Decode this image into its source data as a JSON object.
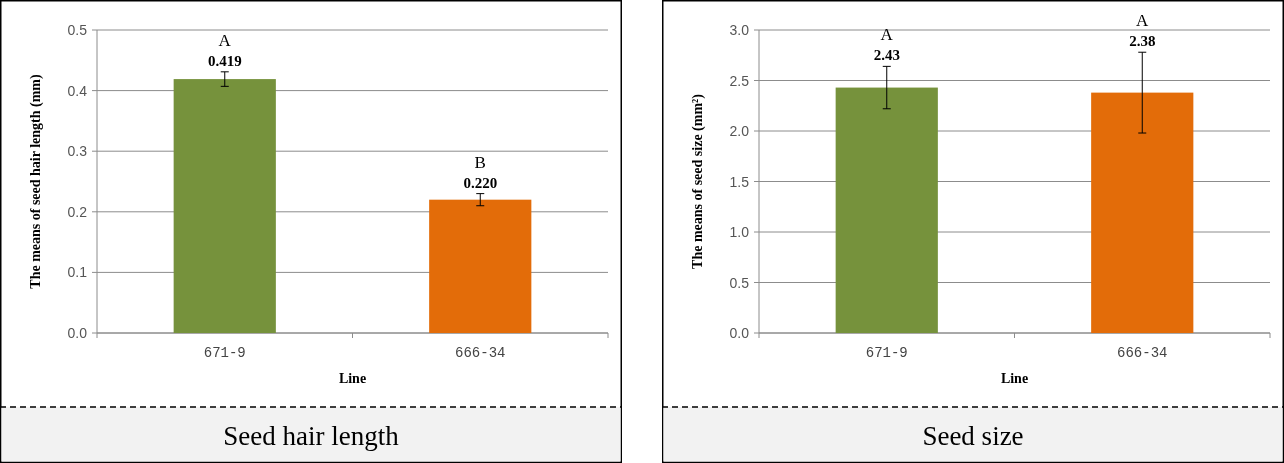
{
  "chart_data": [
    {
      "type": "bar",
      "title": "Seed hair length",
      "xlabel": "Line",
      "ylabel": "The means of seed hair length (mm)",
      "categories": [
        "671-9",
        "666-34"
      ],
      "values": [
        0.419,
        0.22
      ],
      "colors": [
        "#76923c",
        "#e36c09"
      ],
      "errors": [
        0.012,
        0.01
      ],
      "value_labels": [
        "0.419",
        "0.220"
      ],
      "ylim": [
        0,
        0.5
      ],
      "yticks": [
        {
          "value": 0,
          "label": "0.0"
        },
        0.1,
        0.2,
        0.3,
        0.4,
        0.5
      ],
      "grid": "y",
      "annotations": [
        "A",
        "B"
      ]
    },
    {
      "type": "bar",
      "title": "Seed size",
      "xlabel": "Line",
      "ylabel": "The means of seed size (mm²)",
      "categories": [
        "671-9",
        "666-34"
      ],
      "values": [
        2.43,
        2.38
      ],
      "colors": [
        "#76923c",
        "#e36c09"
      ],
      "errors": [
        0.21,
        0.4
      ],
      "value_labels": [
        "2.43",
        "2.38"
      ],
      "ylim": [
        0,
        3
      ],
      "yticks": [
        {
          "value": 0,
          "label": "0.0"
        },
        0.5,
        {
          "value": 1,
          "label": "1.0"
        },
        1.5,
        {
          "value": 2,
          "label": "2.0"
        },
        2.5,
        {
          "value": 3,
          "label": "3.0"
        }
      ],
      "grid": "y",
      "annotations": [
        "A",
        "A"
      ]
    }
  ]
}
